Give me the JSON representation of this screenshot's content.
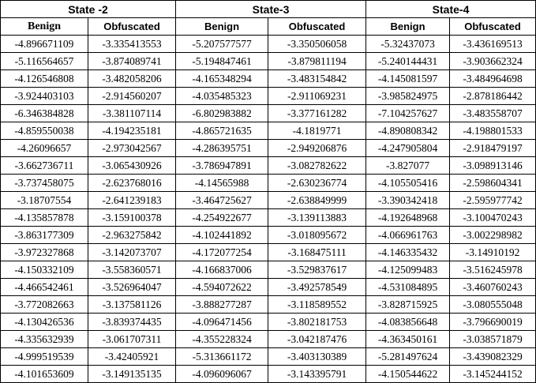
{
  "states": [
    "State -2",
    "State-3",
    "State-4"
  ],
  "subheaders": [
    "Benign",
    "Obfuscated",
    "Benign",
    "Obfuscated",
    "Benign",
    "Obfuscated"
  ],
  "rows": [
    [
      "-4.896671109",
      "-3.335413553",
      "-5.207577577",
      "-3.350506058",
      "-5.32437073",
      "-3.436169513"
    ],
    [
      "-5.116564657",
      "-3.874089741",
      "-5.194847461",
      "-3.879811194",
      "-5.240144431",
      "-3.903662324"
    ],
    [
      "-4.126546808",
      "-3.482058206",
      "-4.165348294",
      "-3.483154842",
      "-4.145081597",
      "-3.484964698"
    ],
    [
      "-3.924403103",
      "-2.914560207",
      "-4.035485323",
      "-2.911069231",
      "-3.985824975",
      "-2.878186442"
    ],
    [
      "-6.346384828",
      "-3.381107114",
      "-6.802983882",
      "-3.377161282",
      "-7.104257627",
      "-3.483558707"
    ],
    [
      "-4.859550038",
      "-4.194235181",
      "-4.865721635",
      "-4.1819771",
      "-4.890808342",
      "-4.198801533"
    ],
    [
      "-4.26096657",
      "-2.973042567",
      "-4.286395751",
      "-2.949206876",
      "-4.247905804",
      "-2.918479197"
    ],
    [
      "-3.662736711",
      "-3.065430926",
      "-3.786947891",
      "-3.082782622",
      "-3.827077",
      "-3.098913146"
    ],
    [
      "-3.737458075",
      "-2.623768016",
      "-4.14565988",
      "-2.630236774",
      "-4.105505416",
      "-2.598604341"
    ],
    [
      "-3.18707554",
      "-2.641239183",
      "-3.464725627",
      "-2.638849999",
      "-3.390342418",
      "-2.595977742"
    ],
    [
      "-4.135857878",
      "-3.159100378",
      "-4.254922677",
      "-3.139113883",
      "-4.192648968",
      "-3.100470243"
    ],
    [
      "-3.863177309",
      "-2.963275842",
      "-4.102441892",
      "-3.018095672",
      "-4.066961763",
      "-3.002298982"
    ],
    [
      "-3.972327868",
      "-3.142073707",
      "-4.172077254",
      "-3.168475111",
      "-4.146335432",
      "-3.14910192"
    ],
    [
      "-4.150332109",
      "-3.558360571",
      "-4.166837006",
      "-3.529837617",
      "-4.125099483",
      "-3.516245978"
    ],
    [
      "-4.466542461",
      "-3.526964047",
      "-4.594072622",
      "-3.492578549",
      "-4.531084895",
      "-3.460760243"
    ],
    [
      "-3.772082663",
      "-3.137581126",
      "-3.888277287",
      "-3.118589552",
      "-3.828715925",
      "-3.080555048"
    ],
    [
      "-4.130426536",
      "-3.839374435",
      "-4.096471456",
      "-3.802181753",
      "-4.083856648",
      "-3.796690019"
    ],
    [
      "-4.335632939",
      "-3.061707311",
      "-4.355228324",
      "-3.042187476",
      "-4.363450161",
      "-3.038571879"
    ],
    [
      "-4.999519539",
      "-3.42405921",
      "-5.313661172",
      "-3.403130389",
      "-5.281497624",
      "-3.439082329"
    ],
    [
      "-4.101653609",
      "-3.149135135",
      "-4.096096067",
      "-3.143395791",
      "-4.150544622",
      "-3.145244152"
    ]
  ]
}
